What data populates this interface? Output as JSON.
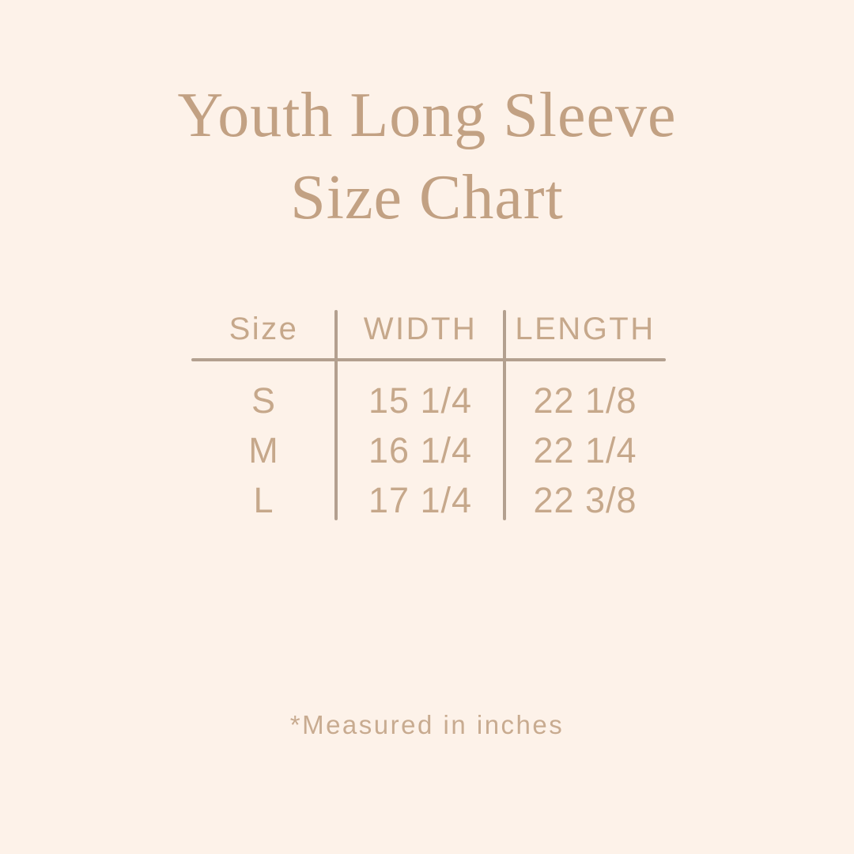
{
  "page": {
    "background_color": "#fdf2e9"
  },
  "title": {
    "line1": "Youth Long Sleeve",
    "line2": "Size Chart",
    "color": "#c2a183"
  },
  "table": {
    "headers": [
      "Size",
      "WIDTH",
      "LENGTH"
    ],
    "rows": [
      {
        "size": "S",
        "width": "15 1/4",
        "length": "22 1/8"
      },
      {
        "size": "M",
        "width": "16 1/4",
        "length": "22 1/4"
      },
      {
        "size": "L",
        "width": "17 1/4",
        "length": "22 3/8"
      }
    ],
    "text_color": "#c6a88b",
    "line_color": "#b3a08f"
  },
  "footnote": {
    "text": "*Measured in inches",
    "color": "#c8ab90"
  },
  "chart_data": {
    "type": "table",
    "title": "Youth Long Sleeve Size Chart",
    "columns": [
      "Size",
      "WIDTH",
      "LENGTH"
    ],
    "rows": [
      [
        "S",
        "15 1/4",
        "22 1/8"
      ],
      [
        "M",
        "16 1/4",
        "22 1/4"
      ],
      [
        "L",
        "17 1/4",
        "22 3/8"
      ]
    ],
    "note": "*Measured in inches",
    "units": "inches"
  }
}
